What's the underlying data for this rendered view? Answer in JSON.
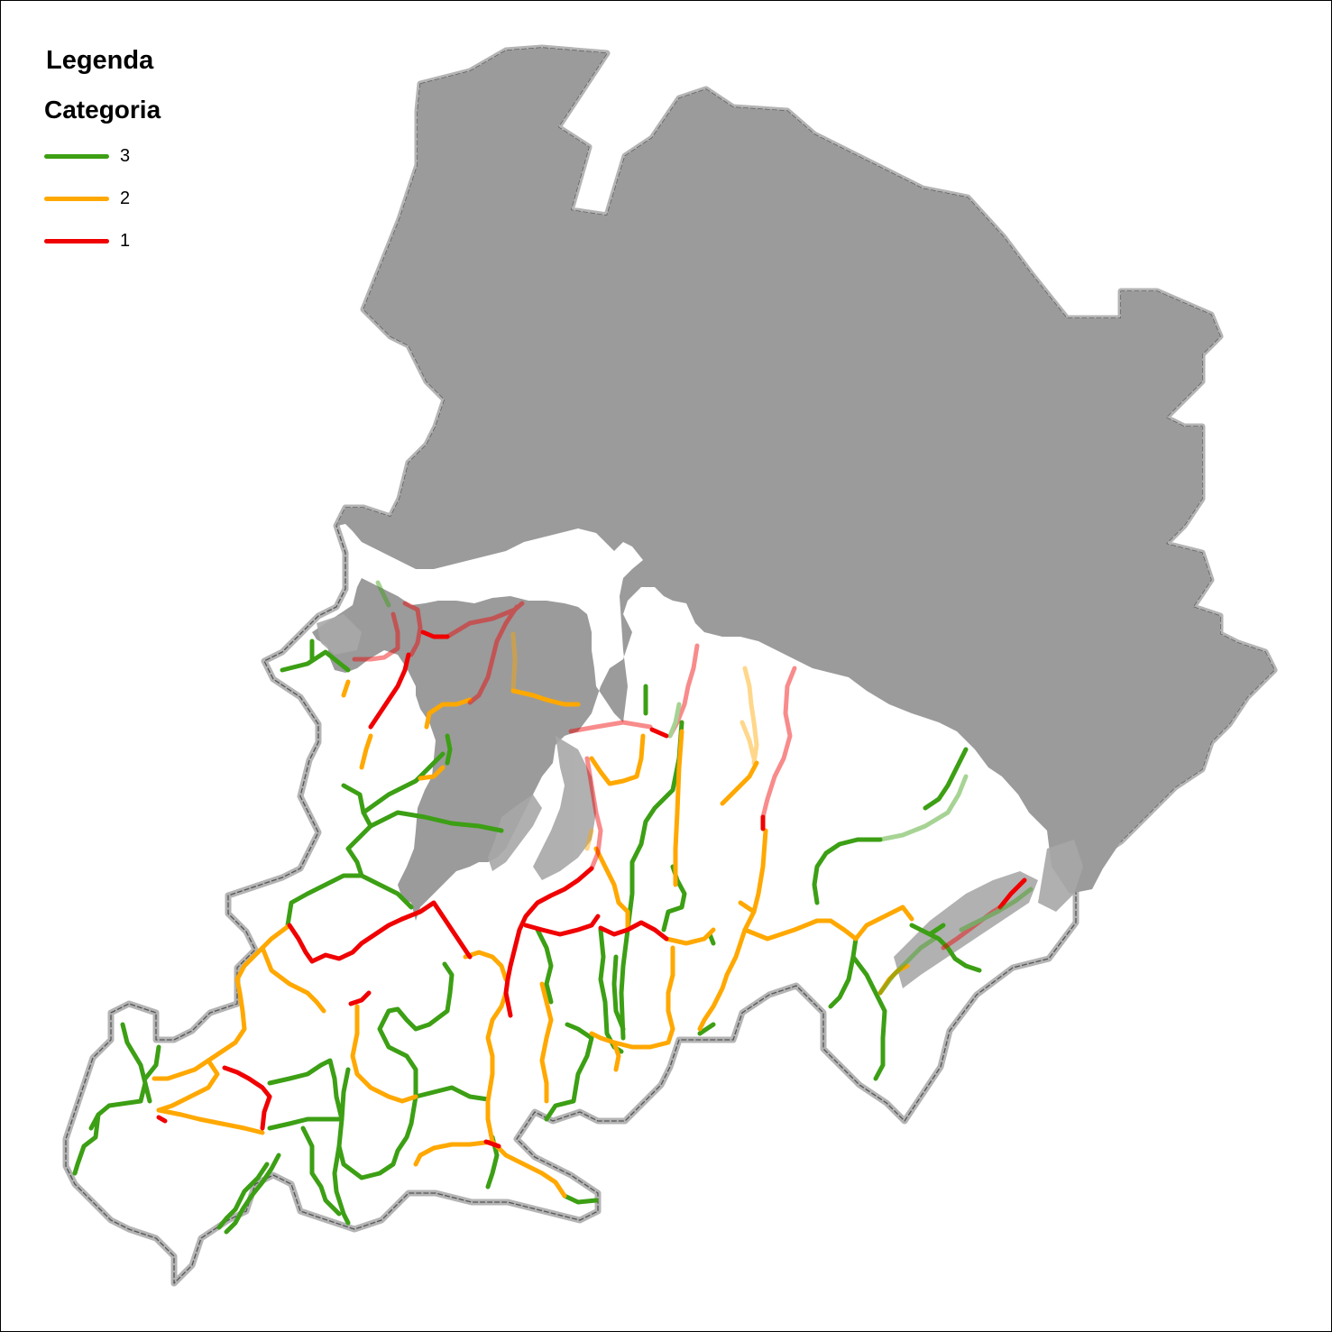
{
  "legend": {
    "title": "Legenda",
    "subtitle": "Categoria",
    "items": [
      {
        "label": "3",
        "color": "#3c9f14"
      },
      {
        "label": "2",
        "color": "#ffa800"
      },
      {
        "label": "1",
        "color": "#f00000"
      }
    ]
  },
  "colors": {
    "plain_fill": "#9b9b9b",
    "border_halo": "#b4b4b4",
    "border_line": "#555555",
    "hill_shadow": "#a8a8a8",
    "background": "#ffffff"
  }
}
